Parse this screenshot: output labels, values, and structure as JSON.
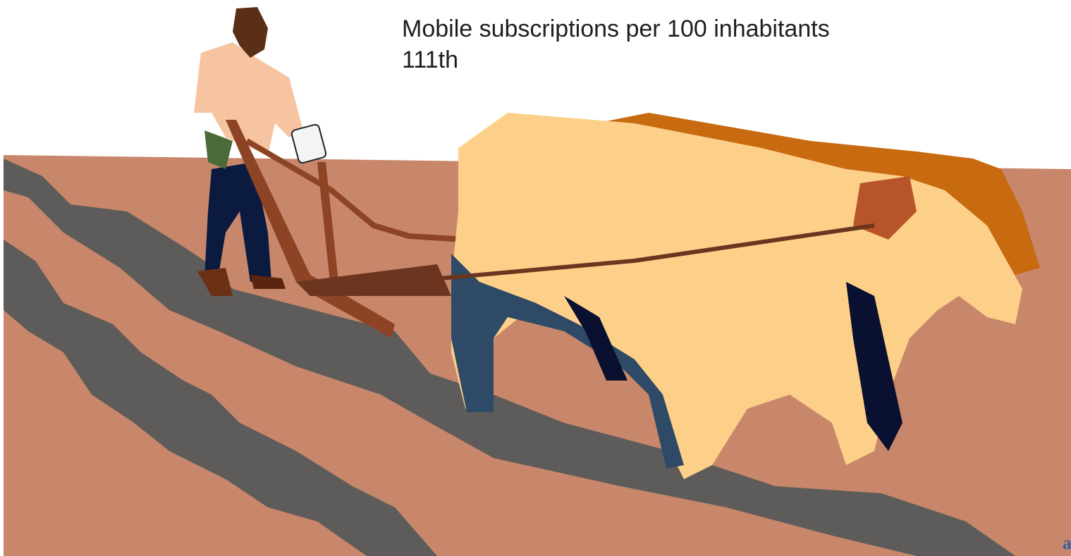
{
  "slide": {
    "caption": "Mobile subscriptions per 100 inhabitants",
    "rank": "111th",
    "corner_fragment": "a"
  }
}
